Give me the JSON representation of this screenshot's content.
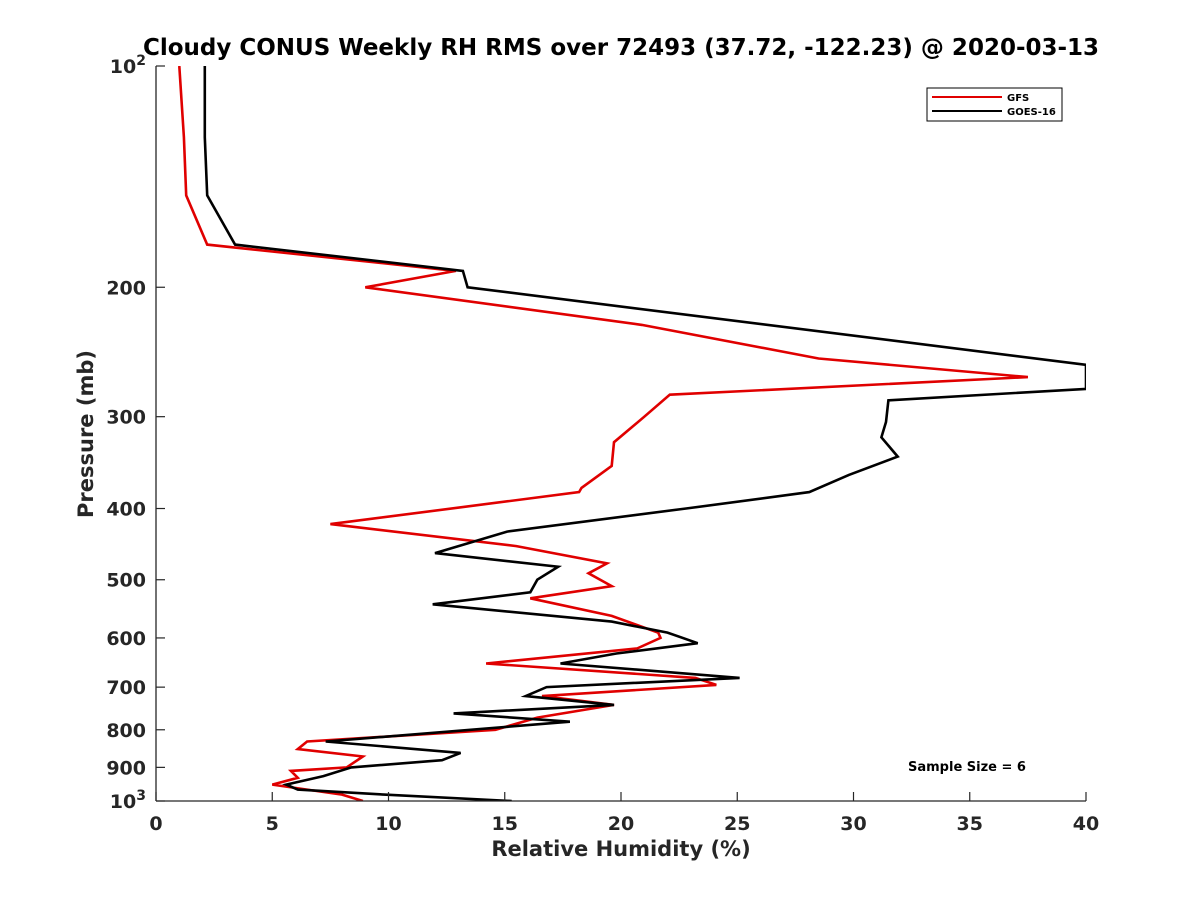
{
  "chart_data": {
    "type": "line",
    "title": "Cloudy CONUS Weekly RH RMS over 72493 (37.72, -122.23) @ 2020-03-13",
    "xlabel": "Relative Humidity (%)",
    "ylabel": "Pressure (mb)",
    "xlim": [
      0,
      40
    ],
    "ylim": [
      100,
      1000
    ],
    "y_scale": "log",
    "y_reversed": true,
    "grid": false,
    "legend_position": "top-right",
    "annotation": "Sample Size = 6",
    "x_ticks": [
      "0",
      "5",
      "10",
      "15",
      "20",
      "25",
      "30",
      "35",
      "40"
    ],
    "y_ticks": [
      {
        "value": 100,
        "base": "10",
        "exp": "2"
      },
      {
        "value": 200,
        "label": "200"
      },
      {
        "value": 300,
        "label": "300"
      },
      {
        "value": 400,
        "label": "400"
      },
      {
        "value": 500,
        "label": "500"
      },
      {
        "value": 600,
        "label": "600"
      },
      {
        "value": 700,
        "label": "700"
      },
      {
        "value": 800,
        "label": "800"
      },
      {
        "value": 900,
        "label": "900"
      },
      {
        "value": 1000,
        "base": "10",
        "exp": "3"
      }
    ],
    "series": [
      {
        "name": "GFS",
        "color": "#e00000",
        "points": [
          [
            1.0,
            100
          ],
          [
            1.2,
            125
          ],
          [
            1.3,
            150
          ],
          [
            2.2,
            175
          ],
          [
            12.9,
            190
          ],
          [
            9.0,
            200
          ],
          [
            20.9,
            225
          ],
          [
            28.5,
            250
          ],
          [
            37.5,
            265
          ],
          [
            22.1,
            280
          ],
          [
            21.0,
            300
          ],
          [
            19.7,
            325
          ],
          [
            19.6,
            350
          ],
          [
            18.3,
            375
          ],
          [
            18.2,
            380
          ],
          [
            7.5,
            420
          ],
          [
            15.5,
            450
          ],
          [
            19.4,
            475
          ],
          [
            18.6,
            490
          ],
          [
            19.6,
            510
          ],
          [
            16.1,
            530
          ],
          [
            19.6,
            560
          ],
          [
            21.6,
            590
          ],
          [
            21.7,
            600
          ],
          [
            20.7,
            620
          ],
          [
            14.2,
            650
          ],
          [
            23.2,
            680
          ],
          [
            24.1,
            695
          ],
          [
            16.6,
            720
          ],
          [
            19.7,
            740
          ],
          [
            16.4,
            770
          ],
          [
            14.6,
            800
          ],
          [
            6.5,
            830
          ],
          [
            6.1,
            850
          ],
          [
            8.9,
            870
          ],
          [
            8.2,
            900
          ],
          [
            5.8,
            910
          ],
          [
            6.1,
            930
          ],
          [
            5.0,
            950
          ],
          [
            8.0,
            980
          ],
          [
            8.9,
            1000
          ]
        ]
      },
      {
        "name": "GOES-16",
        "color": "#000000",
        "points": [
          [
            2.1,
            100
          ],
          [
            2.1,
            125
          ],
          [
            2.2,
            150
          ],
          [
            3.4,
            175
          ],
          [
            13.2,
            190
          ],
          [
            13.4,
            200
          ],
          [
            40.0,
            255
          ],
          [
            40.0,
            275
          ],
          [
            31.5,
            285
          ],
          [
            31.4,
            305
          ],
          [
            31.2,
            320
          ],
          [
            31.9,
            340
          ],
          [
            29.8,
            360
          ],
          [
            28.1,
            380
          ],
          [
            22.8,
            400
          ],
          [
            15.1,
            430
          ],
          [
            12.0,
            460
          ],
          [
            17.3,
            480
          ],
          [
            16.4,
            500
          ],
          [
            16.1,
            520
          ],
          [
            11.9,
            540
          ],
          [
            19.6,
            570
          ],
          [
            22.0,
            590
          ],
          [
            23.3,
            610
          ],
          [
            19.8,
            630
          ],
          [
            17.4,
            650
          ],
          [
            25.1,
            680
          ],
          [
            16.8,
            700
          ],
          [
            15.9,
            720
          ],
          [
            19.7,
            740
          ],
          [
            12.8,
            760
          ],
          [
            17.8,
            780
          ],
          [
            7.3,
            830
          ],
          [
            13.1,
            860
          ],
          [
            12.3,
            880
          ],
          [
            8.4,
            900
          ],
          [
            7.2,
            925
          ],
          [
            5.6,
            950
          ],
          [
            6.1,
            965
          ],
          [
            9.8,
            980
          ],
          [
            15.3,
            1000
          ]
        ]
      }
    ]
  }
}
